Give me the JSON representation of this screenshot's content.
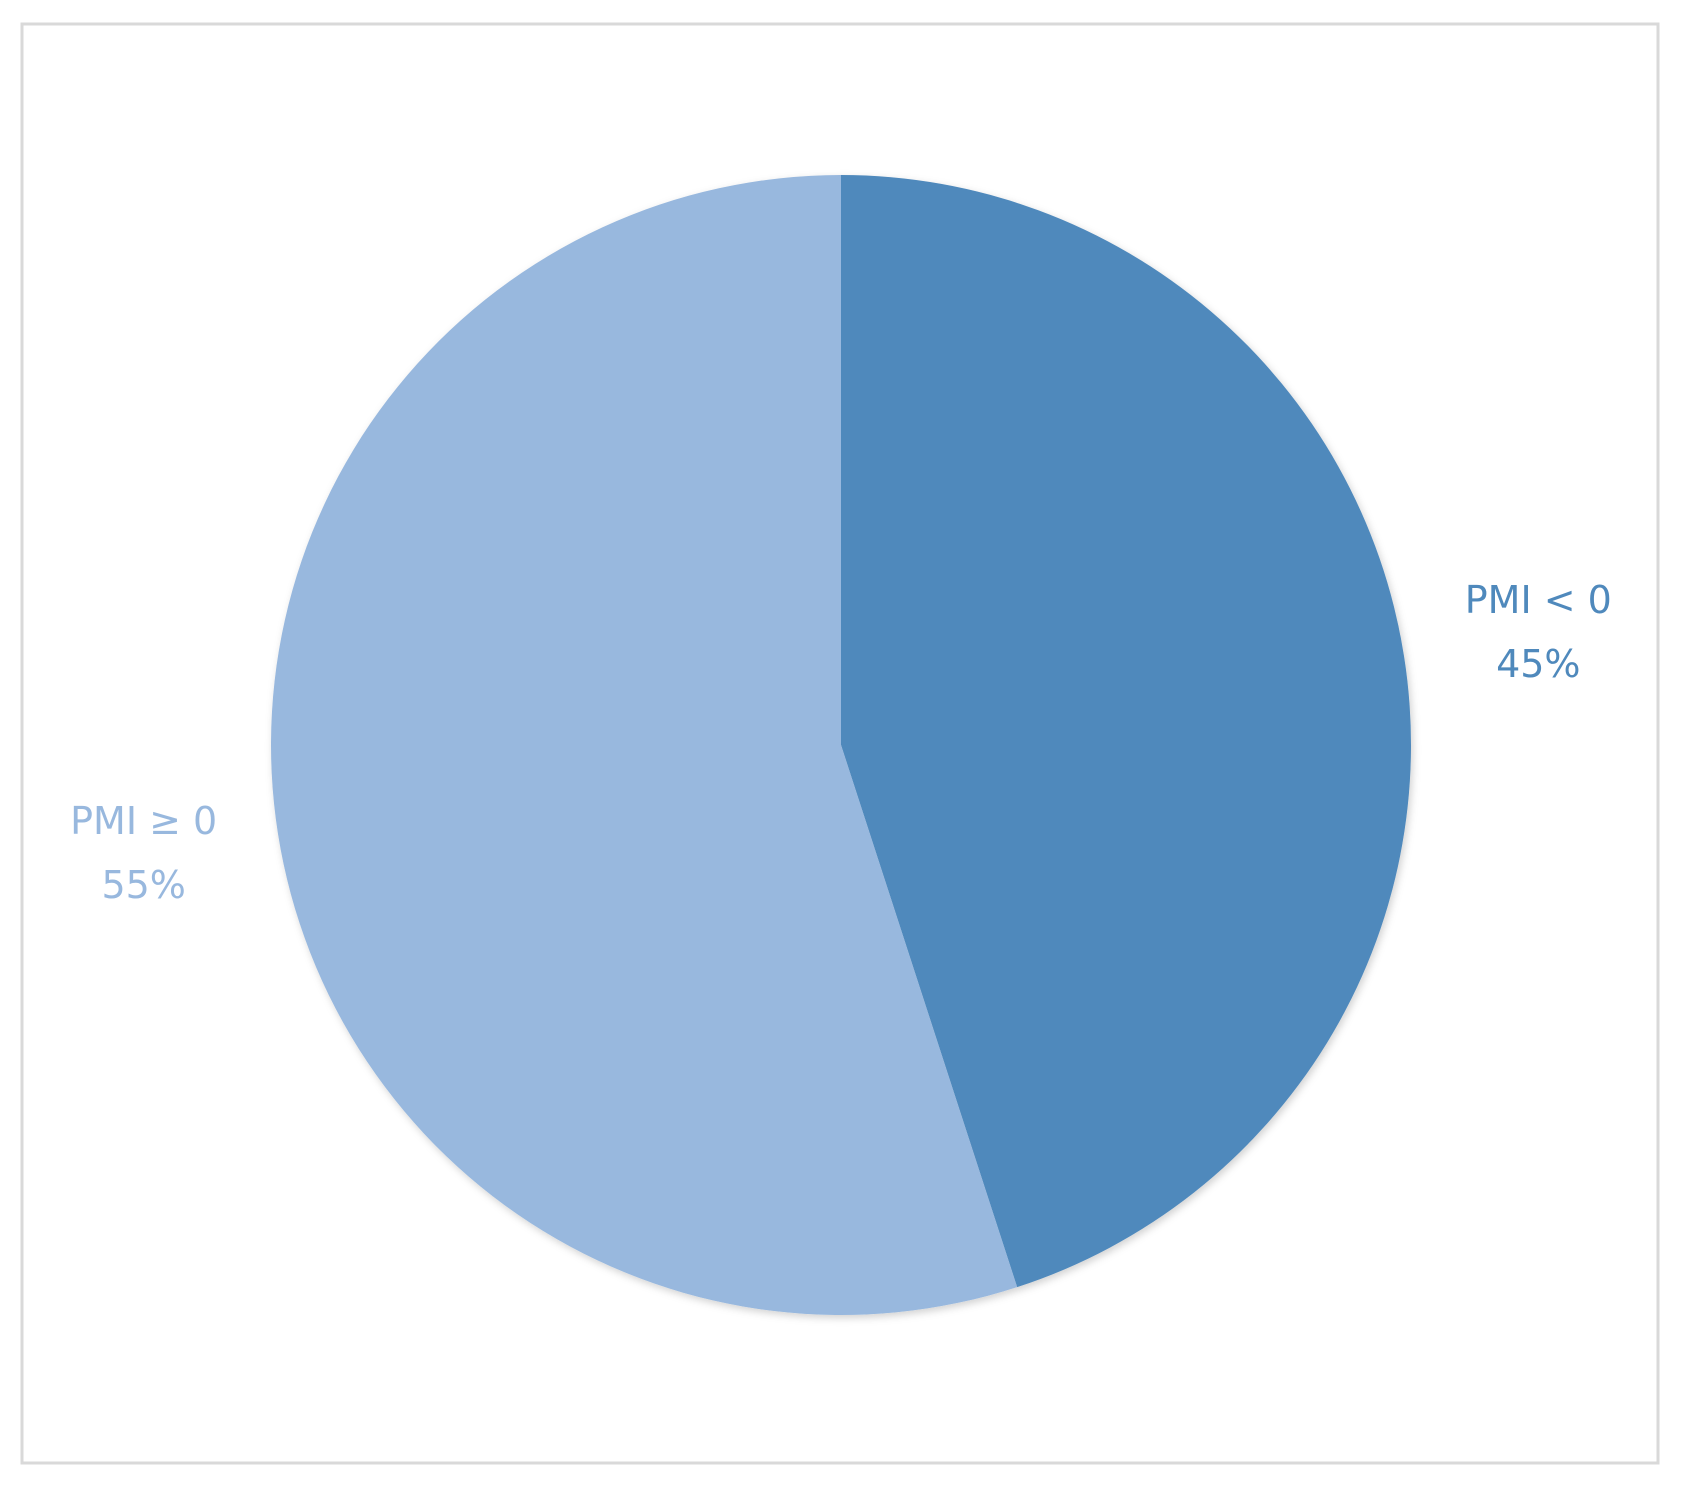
{
  "chart_data": {
    "type": "pie",
    "categories": [
      "PMI < 0",
      "PMI ≥ 0"
    ],
    "values": [
      45,
      55
    ],
    "value_labels": [
      "45%",
      "55%"
    ],
    "colors": [
      "#4f89bc",
      "#98b8de"
    ]
  }
}
